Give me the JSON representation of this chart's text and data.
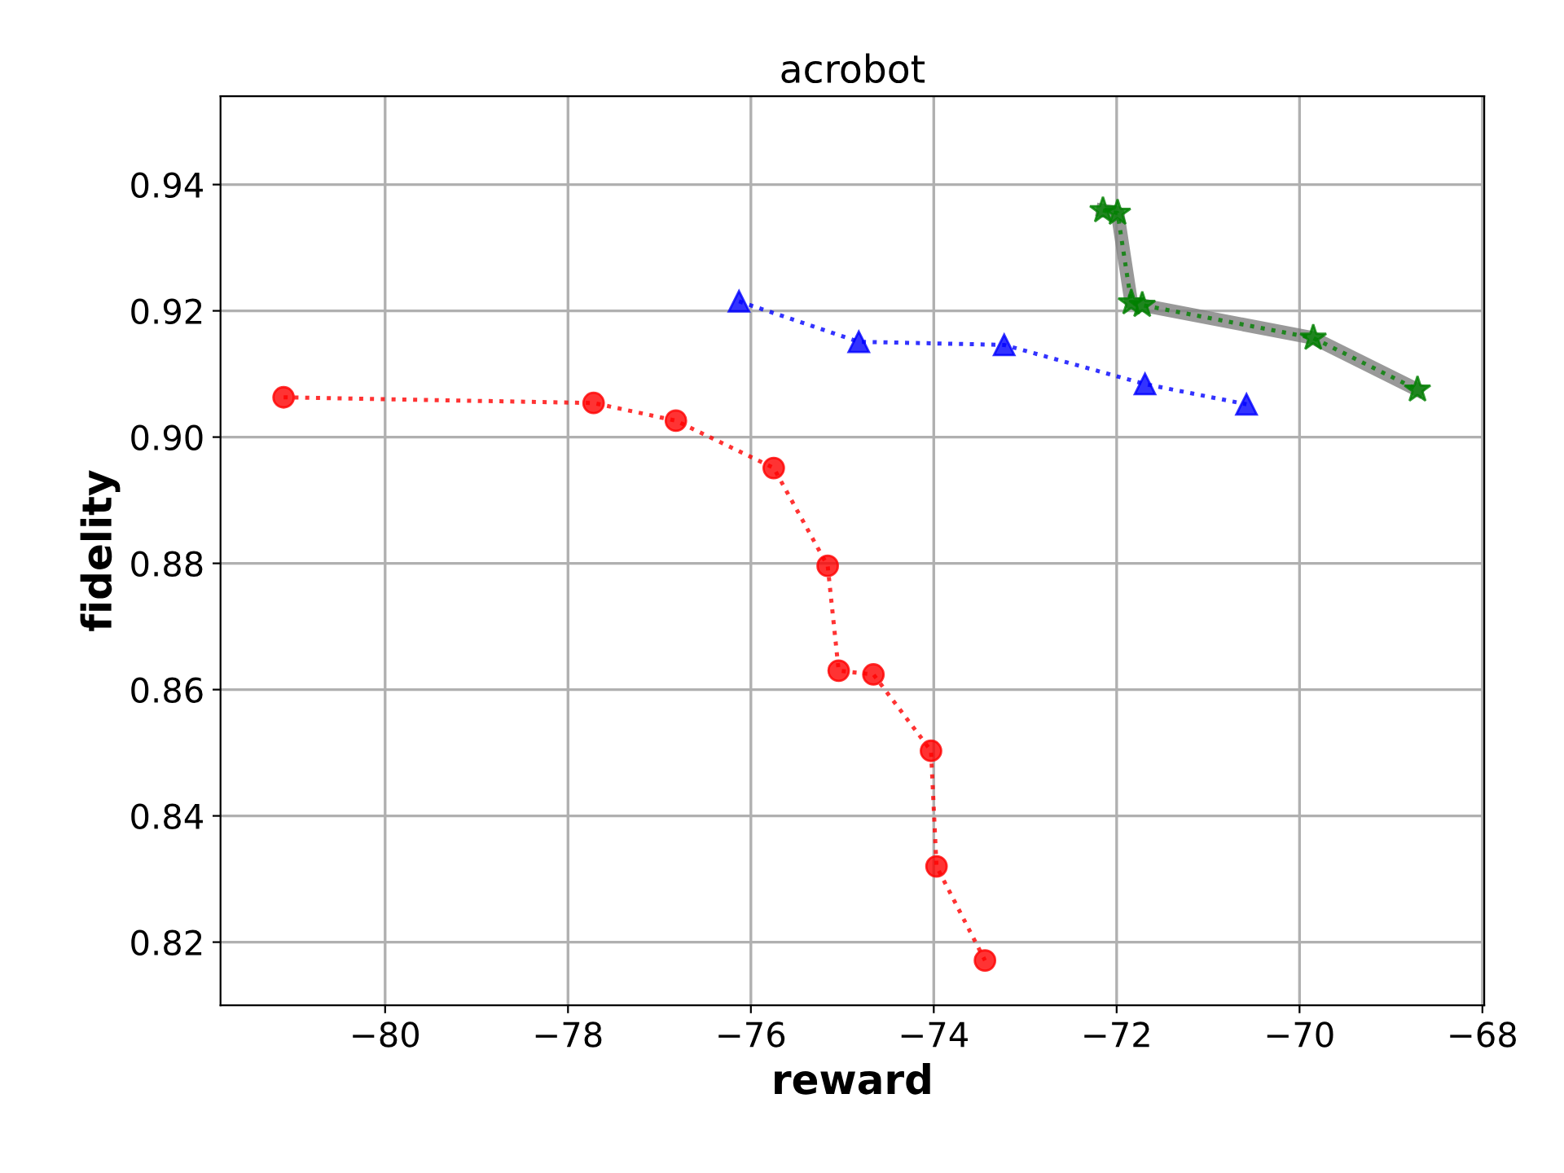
{
  "chart_data": {
    "type": "line",
    "title": "acrobot",
    "xlabel": "reward",
    "ylabel": "fidelity",
    "xlim": [
      -81.8,
      -67.98
    ],
    "ylim": [
      0.81,
      0.954
    ],
    "xticks": [
      {
        "value": -80,
        "label": "−80"
      },
      {
        "value": -78,
        "label": "−78"
      },
      {
        "value": -76,
        "label": "−76"
      },
      {
        "value": -74,
        "label": "−74"
      },
      {
        "value": -72,
        "label": "−72"
      },
      {
        "value": -70,
        "label": "−70"
      },
      {
        "value": -68,
        "label": "−68"
      }
    ],
    "yticks": [
      {
        "value": 0.82,
        "label": "0.82"
      },
      {
        "value": 0.84,
        "label": "0.84"
      },
      {
        "value": 0.86,
        "label": "0.86"
      },
      {
        "value": 0.88,
        "label": "0.88"
      },
      {
        "value": 0.9,
        "label": "0.90"
      },
      {
        "value": 0.92,
        "label": "0.92"
      },
      {
        "value": 0.94,
        "label": "0.94"
      }
    ],
    "grid": true,
    "series": [
      {
        "color": "#ff0000",
        "marker": "circle",
        "line_style": "dotted",
        "x": [
          -81.11,
          -77.72,
          -76.82,
          -75.75,
          -75.16,
          -75.04,
          -74.66,
          -74.03,
          -73.97,
          -73.44
        ],
        "values": [
          0.9063,
          0.9054,
          0.9026,
          0.8951,
          0.8796,
          0.863,
          0.8624,
          0.8503,
          0.832,
          0.8171
        ]
      },
      {
        "color": "#0000ff",
        "marker": "triangle",
        "line_style": "dotted",
        "x": [
          -76.13,
          -74.82,
          -73.23,
          -71.69,
          -70.58
        ],
        "values": [
          0.9215,
          0.9151,
          0.9146,
          0.9084,
          0.9052
        ]
      },
      {
        "color": "#808080",
        "marker": "none",
        "line_style": "solid",
        "x": [
          -72.15,
          -71.99,
          -71.84,
          -71.72,
          -69.85,
          -68.71
        ],
        "values": [
          0.9359,
          0.9355,
          0.9213,
          0.9209,
          0.9157,
          0.9075
        ]
      },
      {
        "color": "#008000",
        "marker": "star",
        "line_style": "dotted",
        "x": [
          -72.15,
          -71.99,
          -71.84,
          -71.72,
          -69.85,
          -68.71
        ],
        "values": [
          0.9359,
          0.9355,
          0.9213,
          0.9209,
          0.9157,
          0.9075
        ]
      }
    ]
  }
}
